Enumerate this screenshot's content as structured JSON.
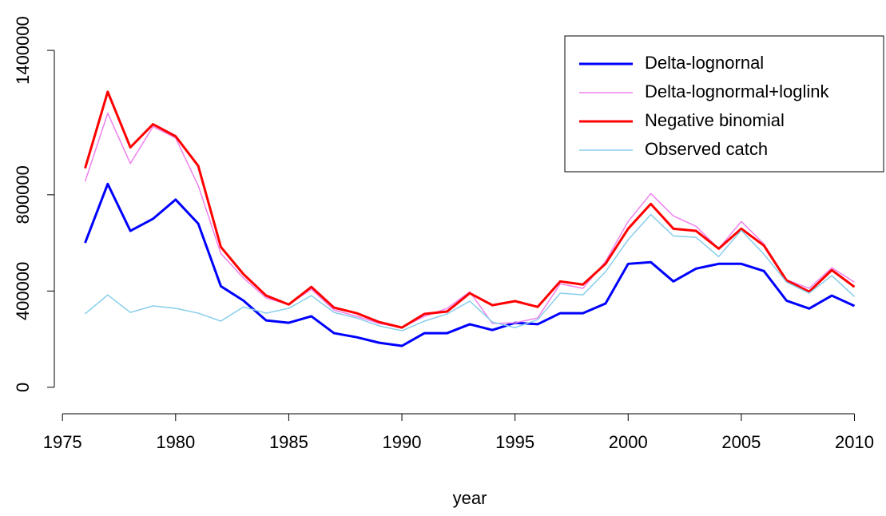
{
  "chart_data": {
    "type": "line",
    "xlabel": "year",
    "x": [
      1976,
      1977,
      1978,
      1979,
      1980,
      1981,
      1982,
      1983,
      1984,
      1985,
      1986,
      1987,
      1988,
      1989,
      1990,
      1991,
      1992,
      1993,
      1994,
      1995,
      1996,
      1997,
      1998,
      1999,
      2000,
      2001,
      2002,
      2003,
      2004,
      2005,
      2006,
      2007,
      2008,
      2009,
      2010
    ],
    "series": [
      {
        "name": "Delta-lognornal",
        "color": "#0000ff",
        "width": 3,
        "values": [
          600000,
          845000,
          650000,
          700000,
          780000,
          680000,
          420000,
          360000,
          278000,
          268000,
          295000,
          225000,
          208000,
          185000,
          172000,
          225000,
          225000,
          262000,
          238000,
          268000,
          262000,
          308000,
          308000,
          348000,
          513000,
          520000,
          440000,
          493000,
          513000,
          513000,
          483000,
          360000,
          327000,
          381000,
          338000
        ]
      },
      {
        "name": "Delta-lognormal+loglink",
        "color": "#ee82ee",
        "width": 1.5,
        "values": [
          855000,
          1139000,
          930000,
          1083000,
          1036000,
          838000,
          556000,
          454000,
          371000,
          344000,
          407000,
          321000,
          295000,
          265000,
          248000,
          295000,
          328000,
          397000,
          265000,
          268000,
          288000,
          430000,
          411000,
          523000,
          689000,
          805000,
          712000,
          669000,
          576000,
          689000,
          596000,
          447000,
          411000,
          497000,
          437000
        ]
      },
      {
        "name": "Negative binomial",
        "color": "#ff0000",
        "width": 3,
        "values": [
          910000,
          1228000,
          997000,
          1093000,
          1043000,
          920000,
          583000,
          470000,
          381000,
          344000,
          417000,
          331000,
          308000,
          271000,
          248000,
          305000,
          315000,
          391000,
          341000,
          358000,
          334000,
          440000,
          427000,
          513000,
          659000,
          762000,
          659000,
          650000,
          576000,
          659000,
          589000,
          444000,
          397000,
          487000,
          417000
        ]
      },
      {
        "name": "Observed catch",
        "color": "#87ceeb",
        "width": 1.5,
        "values": [
          305000,
          384000,
          311000,
          338000,
          328000,
          308000,
          275000,
          334000,
          308000,
          328000,
          381000,
          311000,
          288000,
          255000,
          235000,
          275000,
          305000,
          358000,
          271000,
          248000,
          281000,
          391000,
          384000,
          480000,
          613000,
          718000,
          629000,
          623000,
          543000,
          652000,
          553000,
          437000,
          391000,
          464000,
          377000
        ]
      }
    ],
    "xlim": [
      1974.64,
      2011.36
    ],
    "xticks": [
      1975,
      1980,
      1985,
      1990,
      1995,
      2000,
      2005,
      2010
    ],
    "ylim": [
      -110000,
      1460000
    ],
    "yticks": [
      0,
      400000,
      800000,
      1400000
    ],
    "legend": "top-right"
  }
}
